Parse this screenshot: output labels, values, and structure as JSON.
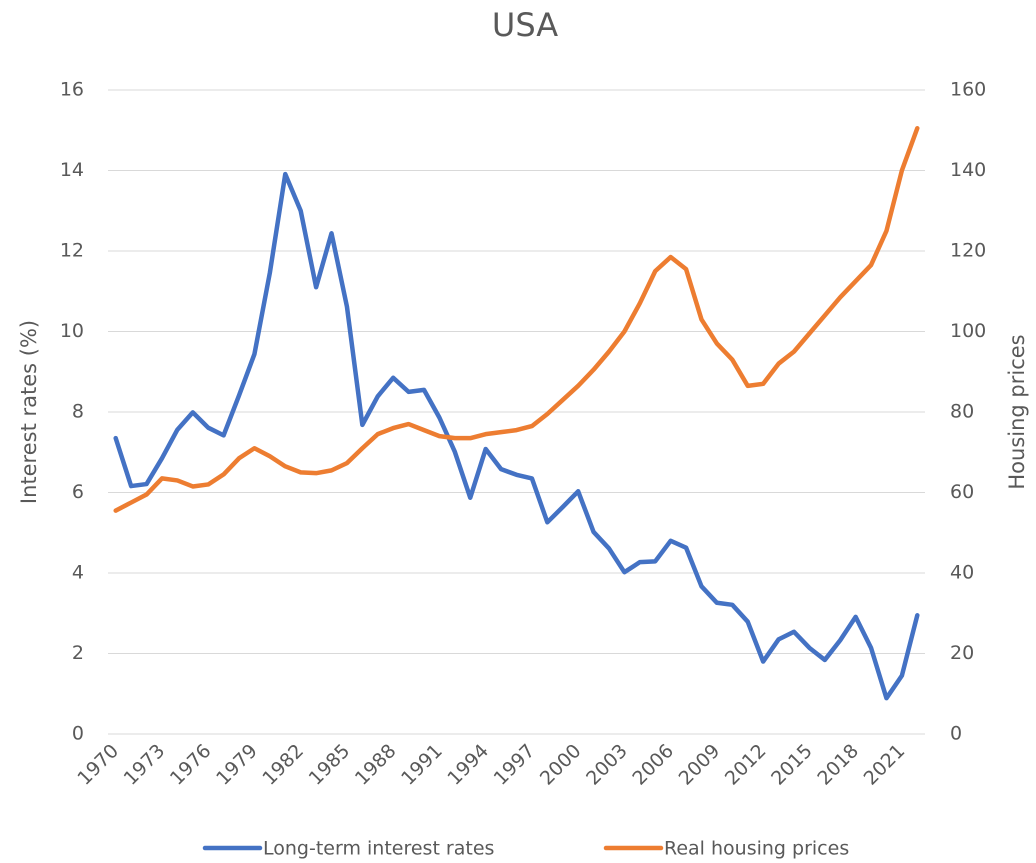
{
  "chart_data": {
    "type": "line",
    "title": "USA",
    "y_label": "Interest rates (%)",
    "y2_label": "Housing prices",
    "categories": [
      "1970",
      null,
      null,
      "1973",
      null,
      null,
      "1976",
      null,
      null,
      "1979",
      null,
      null,
      "1982",
      null,
      null,
      "1985",
      null,
      null,
      "1988",
      null,
      null,
      "1991",
      null,
      null,
      "1994",
      null,
      null,
      "1997",
      null,
      null,
      "2000",
      null,
      null,
      "2003",
      null,
      null,
      "2006",
      null,
      null,
      "2009",
      null,
      null,
      "2012",
      null,
      null,
      "2015",
      null,
      null,
      "2018",
      null,
      null,
      "2021",
      null
    ],
    "series": [
      {
        "name": "Long-term interest rates",
        "color": "#4472c4",
        "axis": "y",
        "values": [
          7.35,
          6.16,
          6.21,
          6.85,
          7.56,
          7.99,
          7.61,
          7.42,
          8.41,
          9.44,
          11.46,
          13.91,
          13.0,
          11.1,
          12.44,
          10.62,
          7.68,
          8.39,
          8.85,
          8.5,
          8.55,
          7.86,
          7.01,
          5.87,
          7.08,
          6.58,
          6.44,
          6.35,
          5.26,
          5.64,
          6.03,
          5.02,
          4.61,
          4.02,
          4.27,
          4.29,
          4.8,
          4.63,
          3.67,
          3.26,
          3.21,
          2.79,
          1.8,
          2.35,
          2.54,
          2.14,
          1.84,
          2.33,
          2.91,
          2.14,
          0.89,
          1.45,
          2.95
        ]
      },
      {
        "name": "Real housing prices",
        "color": "#ed7d31",
        "axis": "y2",
        "values": [
          55.5,
          57.5,
          59.5,
          63.5,
          63,
          61.5,
          62,
          64.5,
          68.5,
          71,
          69,
          66.5,
          65,
          64.8,
          65.5,
          67.3,
          71,
          74.5,
          76,
          77,
          75.5,
          74,
          73.5,
          73.5,
          74.5,
          75,
          75.5,
          76.5,
          79.5,
          83,
          86.5,
          90.5,
          95,
          100,
          107,
          115,
          118.5,
          115.5,
          103,
          97,
          93,
          86.5,
          87,
          92,
          95,
          99.5,
          104,
          108.5,
          112.5,
          116.5,
          125,
          140,
          150.5
        ]
      }
    ],
    "ylim": [
      0,
      16
    ],
    "yticks": [
      0,
      2,
      4,
      6,
      8,
      10,
      12,
      14,
      16
    ],
    "y2lim": [
      0,
      160
    ],
    "y2ticks": [
      0,
      20,
      40,
      60,
      80,
      100,
      120,
      140,
      160
    ],
    "grid": true,
    "legend": "bottom"
  }
}
